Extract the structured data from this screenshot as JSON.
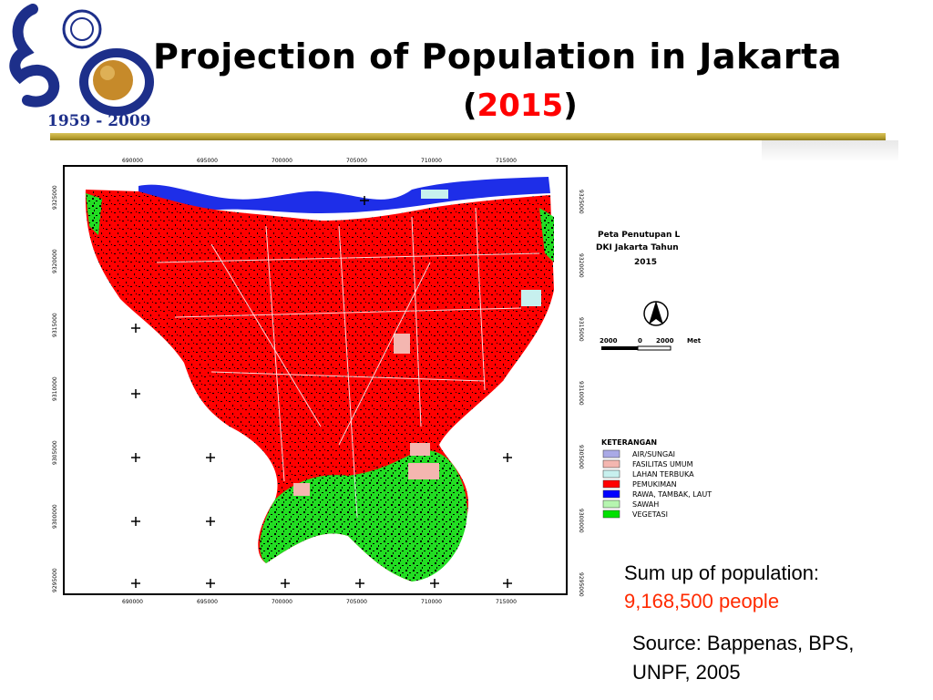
{
  "slide": {
    "title": "Projection of Population in Jakarta",
    "year_open": "(",
    "year": "2015",
    "year_close": ")",
    "population_label": "Sum up of population:",
    "population_value": "9,168,500 people",
    "source": "Source: Bappenas, BPS, UNPF, 2005"
  },
  "logo": {
    "years": "1959 - 2009"
  },
  "map": {
    "map_title_line1": "Peta Penutupan L",
    "map_title_line2": "DKI Jakarta Tahun",
    "map_title_line3": "2015",
    "north_symbol": "north-arrow",
    "scale_left": "2000",
    "scale_mid": "0",
    "scale_right": "2000",
    "scale_unit": "Met",
    "top_ticks": [
      "690000",
      "695000",
      "700000",
      "705000",
      "710000",
      "715000"
    ],
    "bottom_ticks": [
      "690000",
      "695000",
      "700000",
      "705000",
      "710000",
      "715000"
    ],
    "left_ticks": [
      "9325000",
      "9320000",
      "9315000",
      "9310000",
      "9305000",
      "9300000",
      "9295000"
    ],
    "right_ticks": [
      "9325000",
      "9320000",
      "9315000",
      "9310000",
      "9305000",
      "9300000",
      "9295000"
    ],
    "legend_title": "KETERANGAN",
    "legend": [
      {
        "label": "AIR/SUNGAI",
        "color": "#a9a9e6"
      },
      {
        "label": "FASILITAS UMUM",
        "color": "#f4b6b0"
      },
      {
        "label": "LAHAN TERBUKA",
        "color": "#c7f0ee"
      },
      {
        "label": "PEMUKIMAN",
        "color": "#ff0000"
      },
      {
        "label": "RAWA, TAMBAK, LAUT",
        "color": "#0000ff"
      },
      {
        "label": "SAWAH",
        "color": "#b6f5b0"
      },
      {
        "label": "VEGETASI",
        "color": "#00e000"
      }
    ],
    "colors": {
      "settlement": "#ff0000",
      "sea": "#1e2ee8",
      "vegetation": "#22dd22",
      "public_facility": "#f4b6b0",
      "open_land": "#c7f0ee"
    }
  },
  "colors": {
    "accent_red": "#ff0000",
    "rule_gold": "#b8a030",
    "logo_blue": "#1d2f8a"
  }
}
